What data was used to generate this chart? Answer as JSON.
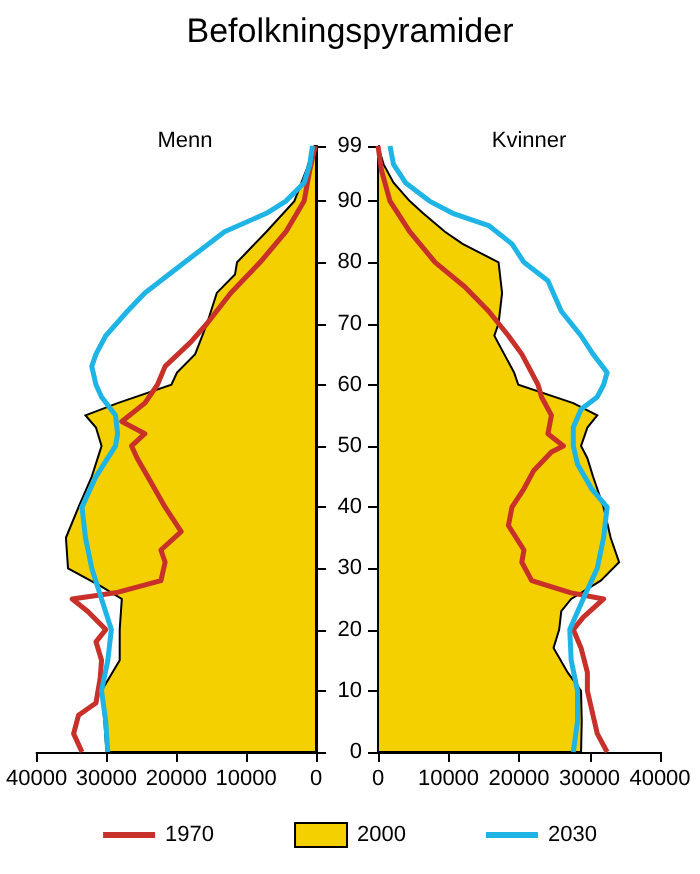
{
  "chart_data": [
    {
      "type": "line",
      "title": "Befolkningspyramider",
      "subtitle": "Menn",
      "orientation": "horizontal",
      "xlim": [
        40000,
        0
      ],
      "xticks": [
        40000,
        30000,
        20000,
        10000,
        0
      ],
      "ylim": [
        0,
        99
      ],
      "yticks": [
        0,
        10,
        20,
        30,
        40,
        50,
        60,
        70,
        80,
        90,
        99
      ],
      "tick_labels": "x",
      "legend": "bottom",
      "series": [
        {
          "name": "2000",
          "type": "area",
          "color": "#f5d000",
          "x": [
            0,
            5,
            10,
            15,
            20,
            25,
            27,
            30,
            35,
            40,
            45,
            50,
            53,
            55,
            57,
            60,
            62,
            65,
            70,
            75,
            78,
            80,
            85,
            90,
            95,
            99
          ],
          "values": [
            30000,
            30300,
            30700,
            28100,
            28100,
            27800,
            30700,
            35500,
            35800,
            34000,
            32100,
            30700,
            31500,
            33000,
            28400,
            20700,
            19900,
            17300,
            15600,
            14200,
            11600,
            11300,
            7100,
            3100,
            1400,
            200
          ]
        },
        {
          "name": "1970",
          "type": "line",
          "color": "#c8302a",
          "x": [
            0,
            3,
            6,
            8,
            12,
            15,
            18,
            20,
            23,
            25,
            26,
            28,
            31,
            33,
            36,
            40,
            45,
            48,
            50,
            52,
            54,
            57,
            60,
            63,
            67,
            70,
            75,
            80,
            85,
            90,
            95,
            99
          ],
          "values": [
            33500,
            34700,
            34000,
            31500,
            30900,
            30700,
            31500,
            30100,
            32700,
            34900,
            28700,
            22200,
            21600,
            22200,
            19300,
            21600,
            24100,
            25600,
            26400,
            24500,
            27800,
            24500,
            22700,
            21600,
            17900,
            15600,
            12200,
            8000,
            4300,
            1700,
            900,
            100
          ]
        },
        {
          "name": "2030",
          "type": "line",
          "color": "#1eb4e6",
          "x": [
            0,
            5,
            10,
            15,
            20,
            25,
            30,
            35,
            40,
            45,
            50,
            52,
            55,
            58,
            60,
            63,
            65,
            68,
            72,
            75,
            80,
            85,
            88,
            90,
            93,
            96,
            99
          ],
          "values": [
            29800,
            30100,
            30700,
            29800,
            29300,
            30700,
            32100,
            33000,
            33500,
            31500,
            28700,
            28400,
            28700,
            30700,
            31500,
            32100,
            31500,
            30100,
            27000,
            24500,
            18800,
            13100,
            7100,
            4300,
            1700,
            900,
            500
          ]
        }
      ]
    },
    {
      "type": "line",
      "subtitle": "Kvinner",
      "orientation": "horizontal",
      "xlim": [
        0,
        40000
      ],
      "xticks": [
        0,
        10000,
        20000,
        30000,
        40000
      ],
      "ylim": [
        0,
        99
      ],
      "yticks": [
        0,
        10,
        20,
        30,
        40,
        50,
        60,
        70,
        80,
        90,
        99
      ],
      "legend": "bottom",
      "series": [
        {
          "name": "2000",
          "type": "area",
          "color": "#f5d000",
          "x": [
            0,
            5,
            10,
            13,
            17,
            20,
            23,
            25,
            28,
            31,
            35,
            40,
            45,
            48,
            50,
            53,
            55,
            57,
            60,
            62,
            65,
            68,
            70,
            75,
            80,
            83,
            85,
            88,
            90,
            93,
            96,
            99
          ],
          "values": [
            28800,
            28900,
            28800,
            26900,
            24900,
            25700,
            26000,
            27400,
            31600,
            34200,
            33000,
            32000,
            30500,
            29700,
            28800,
            29700,
            31100,
            27700,
            19900,
            19300,
            17900,
            16500,
            17100,
            17600,
            17100,
            12000,
            9500,
            6400,
            4500,
            2200,
            800,
            0
          ]
        },
        {
          "name": "1970",
          "type": "line",
          "color": "#c8302a",
          "x": [
            0,
            3,
            6,
            10,
            13,
            17,
            20,
            22,
            25,
            26,
            28,
            31,
            33,
            37,
            40,
            43,
            46,
            49,
            50,
            52,
            55,
            58,
            60,
            65,
            68,
            72,
            76,
            80,
            85,
            90,
            95,
            99
          ],
          "values": [
            32500,
            31100,
            30500,
            29700,
            29700,
            28800,
            27700,
            29100,
            32000,
            27400,
            21800,
            20400,
            20700,
            18500,
            19000,
            20700,
            22100,
            24600,
            26300,
            24100,
            24600,
            23200,
            22700,
            20400,
            18500,
            15700,
            12300,
            8100,
            4500,
            1700,
            500,
            0
          ]
        },
        {
          "name": "2030",
          "type": "line",
          "color": "#1eb4e6",
          "x": [
            0,
            5,
            10,
            15,
            20,
            25,
            30,
            35,
            40,
            43,
            47,
            50,
            53,
            56,
            58,
            60,
            62,
            65,
            68,
            72,
            77,
            80,
            83,
            86,
            88,
            90,
            93,
            96,
            99
          ],
          "values": [
            27700,
            28300,
            28300,
            27400,
            27200,
            29100,
            31100,
            32000,
            32500,
            30300,
            28300,
            27700,
            27700,
            28800,
            31100,
            32000,
            32500,
            30500,
            28800,
            26000,
            24100,
            20700,
            19000,
            15700,
            10600,
            7300,
            3900,
            2200,
            1700
          ]
        }
      ]
    }
  ]
}
